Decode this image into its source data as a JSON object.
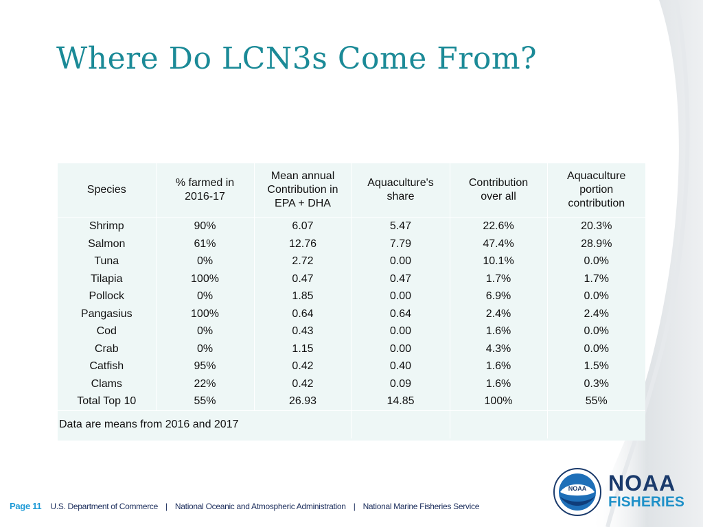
{
  "title": "Where Do LCN3s Come From?",
  "table": {
    "headers": [
      "Species",
      "% farmed in 2016-17",
      "Mean annual Contribution in EPA + DHA",
      "Aquaculture's share",
      "Contribution over all",
      "Aquaculture portion contribution"
    ],
    "rows": [
      [
        "Shrimp",
        "90%",
        "6.07",
        "5.47",
        "22.6%",
        "20.3%"
      ],
      [
        "Salmon",
        "61%",
        "12.76",
        "7.79",
        "47.4%",
        "28.9%"
      ],
      [
        "Tuna",
        "0%",
        "2.72",
        "0.00",
        "10.1%",
        "0.0%"
      ],
      [
        "Tilapia",
        "100%",
        "0.47",
        "0.47",
        "1.7%",
        "1.7%"
      ],
      [
        "Pollock",
        "0%",
        "1.85",
        "0.00",
        "6.9%",
        "0.0%"
      ],
      [
        "Pangasius",
        "100%",
        "0.64",
        "0.64",
        "2.4%",
        "2.4%"
      ],
      [
        "Cod",
        "0%",
        "0.43",
        "0.00",
        "1.6%",
        "0.0%"
      ],
      [
        "Crab",
        "0%",
        "1.15",
        "0.00",
        "4.3%",
        "0.0%"
      ],
      [
        "Catfish",
        "95%",
        "0.42",
        "0.40",
        "1.6%",
        "1.5%"
      ],
      [
        "Clams",
        "22%",
        "0.42",
        "0.09",
        "1.6%",
        "0.3%"
      ],
      [
        "Total Top 10",
        "55%",
        "26.93",
        "14.85",
        "100%",
        "55%"
      ]
    ],
    "note": "Data are means from 2016 and 2017"
  },
  "footer": {
    "page": "Page 11",
    "items": [
      "U.S. Department of Commerce",
      "National Oceanic and Atmospheric Administration",
      "National Marine Fisheries Service"
    ],
    "separator": "|"
  },
  "logo": {
    "seal_text": "NOAA",
    "name": "NOAA",
    "subtitle": "FISHERIES"
  },
  "colors": {
    "title": "#1b8a97",
    "table_bg": "#eef7f6",
    "footer_text": "#1a2c5b",
    "page_number": "#1e9ad6",
    "logo_dark": "#1a3a6b",
    "logo_light": "#1e90c8"
  }
}
